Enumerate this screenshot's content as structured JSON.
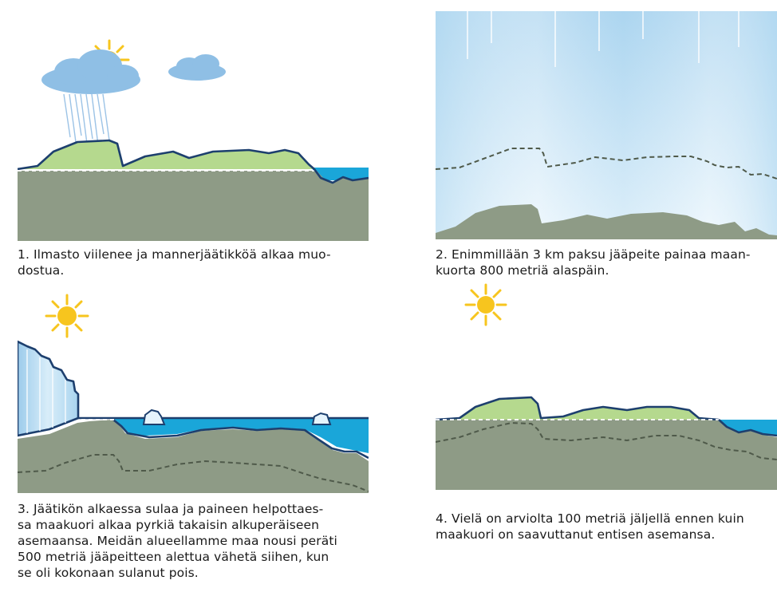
{
  "panels": [
    {
      "caption_line1": "1.  Ilmasto viilenee ja mannerjäätikköä alkaa muo-",
      "caption_line2": "dostua."
    },
    {
      "caption_line1": "2.  Enimmillään 3 km paksu jääpeite painaa maan-",
      "caption_line2": "kuorta 800 metriä alaspäin."
    },
    {
      "caption_line1": "3.  Jäätikön alkaessa sulaa ja paineen helpottaes-",
      "caption_line2": "sa maakuori alkaa pyrkiä takaisin alkuperäiseen",
      "caption_line3": "asemaansa. Meidän alueellamme maa nousi peräti",
      "caption_line4": "500 metriä jääpeitteen alettua vähetä siihen, kun",
      "caption_line5": "se oli kokonaan sulanut pois."
    },
    {
      "caption_line1": "4.  Vielä on arviolta 100 metriä jäljellä ennen kuin",
      "caption_line2": "maakuori on saavuttanut entisen asemansa."
    }
  ],
  "colors": {
    "ground": "#8e9b86",
    "sea": "#1aa6d9",
    "vegetation": "#b5d98e",
    "ice": "#b9ddf2",
    "outline": "#1d3f6e",
    "cloud": "#8fbfe5",
    "sun": "#f7c51e"
  },
  "icons": [
    "sun-icon",
    "cloud-icon",
    "rain-icon",
    "ice-sheet",
    "iceberg-icon"
  ]
}
